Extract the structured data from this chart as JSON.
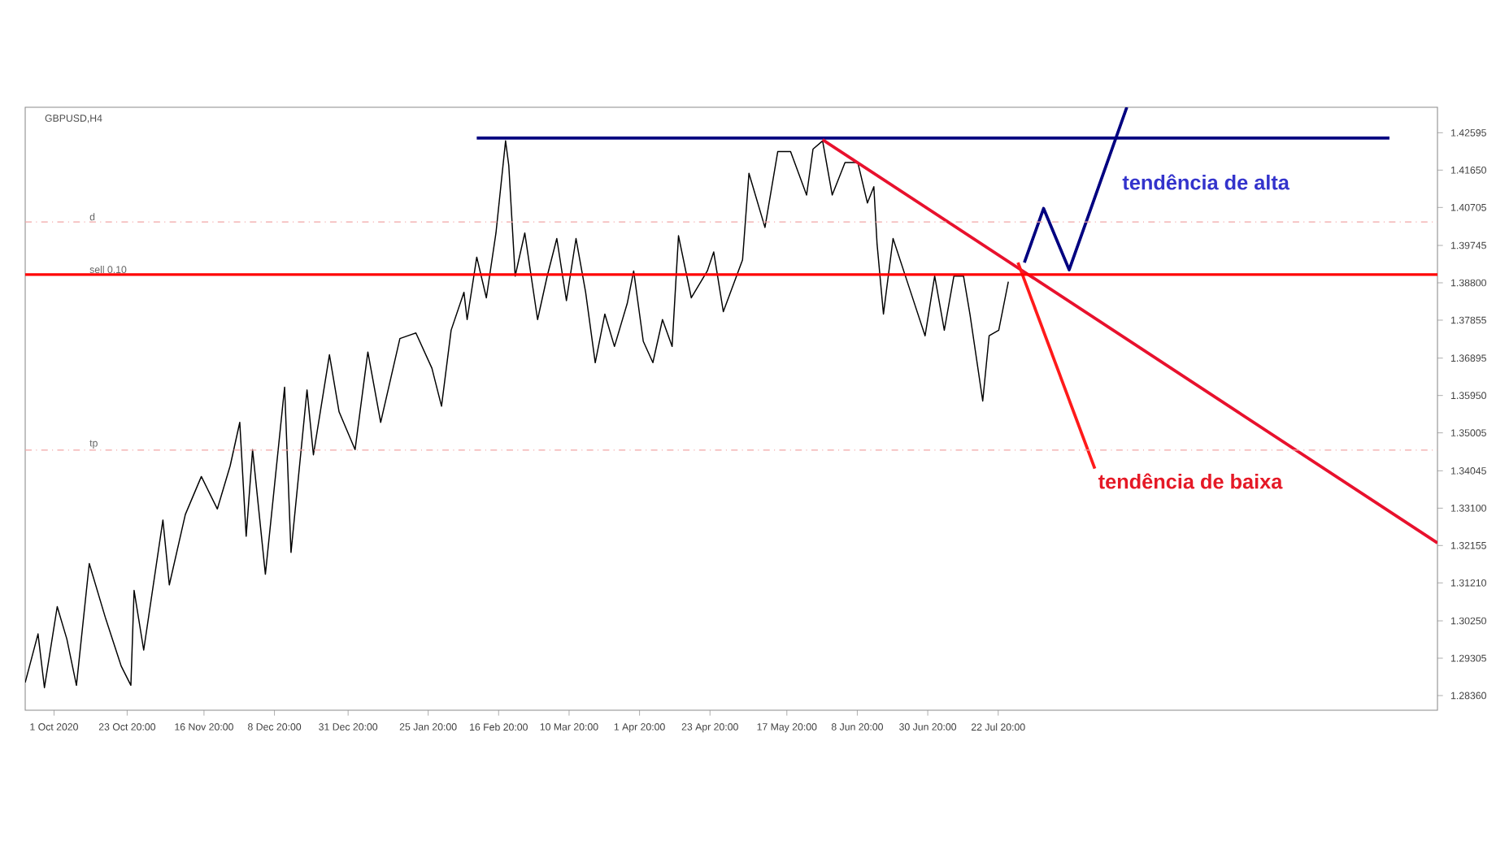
{
  "chart_data": {
    "type": "line",
    "title": "GBPUSD,H4",
    "grid": false,
    "marker": "none",
    "line_style": "solid",
    "xlim": [
      "2020-09-22",
      "2021-12-07"
    ],
    "ylim": [
      1.2799,
      1.4324
    ],
    "xticks": [
      {
        "value": "2020-10-01",
        "label": "1 Oct 2020"
      },
      {
        "value": "2020-10-23T20:00",
        "label": "23 Oct 20:00"
      },
      {
        "value": "2020-11-16T20:00",
        "label": "16 Nov 20:00"
      },
      {
        "value": "2020-12-08T20:00",
        "label": "8 Dec 20:00"
      },
      {
        "value": "2020-12-31T20:00",
        "label": "31 Dec 20:00"
      },
      {
        "value": "2021-01-25T20:00",
        "label": "25 Jan 20:00"
      },
      {
        "value": "2021-02-16T20:00",
        "label": "16 Feb 20:00"
      },
      {
        "value": "2021-03-10T20:00",
        "label": "10 Mar 20:00"
      },
      {
        "value": "2021-04-01T20:00",
        "label": "1 Apr 20:00"
      },
      {
        "value": "2021-04-23T20:00",
        "label": "23 Apr 20:00"
      },
      {
        "value": "2021-05-17T20:00",
        "label": "17 May 20:00"
      },
      {
        "value": "2021-06-08T20:00",
        "label": "8 Jun 20:00"
      },
      {
        "value": "2021-06-30T20:00",
        "label": "30 Jun 20:00"
      },
      {
        "value": "2021-07-22T20:00",
        "label": "22 Jul 20:00"
      }
    ],
    "yticks": [
      1.42595,
      {
        "value": 1.4165,
        "label": "1.41650"
      },
      1.40705,
      1.39745,
      {
        "value": 1.388,
        "label": "1.38800"
      },
      1.37855,
      1.36895,
      {
        "value": 1.3595,
        "label": "1.35950"
      },
      1.35005,
      1.34045,
      {
        "value": 1.331,
        "label": "1.33100"
      },
      1.32155,
      {
        "value": 1.3121,
        "label": "1.31210"
      },
      {
        "value": 1.3025,
        "label": "1.30250"
      },
      1.29305,
      {
        "value": 1.2836,
        "label": "1.28360"
      }
    ],
    "ref_lines": [
      {
        "axis": "y",
        "value": 1.39008,
        "label": "sell 0.10",
        "color": "#ff0000",
        "line_style": "solid"
      },
      {
        "axis": "y",
        "value": 1.4034,
        "label": "d",
        "color": "#f2a6a6",
        "line_style": "dashed"
      },
      {
        "axis": "y",
        "value": 1.3457,
        "label": "tp",
        "color": "#f2a6a6",
        "line_style": "dashed"
      }
    ],
    "annotations": [
      "tendência de alta",
      "tendência de baixa"
    ],
    "series": [
      {
        "color": "#000000",
        "x": [
          "2020-09-22",
          "2020-09-26",
          "2020-09-28",
          "2020-10-02",
          "2020-10-05",
          "2020-10-08",
          "2020-10-12",
          "2020-10-17",
          "2020-10-22",
          "2020-10-25",
          "2020-10-26",
          "2020-10-29",
          "2020-11-04",
          "2020-11-06",
          "2020-11-11",
          "2020-11-16",
          "2020-11-21",
          "2020-11-25",
          "2020-11-28",
          "2020-11-30",
          "2020-12-02",
          "2020-12-06",
          "2020-12-12",
          "2020-12-14",
          "2020-12-19",
          "2020-12-21",
          "2020-12-26",
          "2020-12-29",
          "2021-01-03",
          "2021-01-07",
          "2021-01-11",
          "2021-01-17",
          "2021-01-22",
          "2021-01-27",
          "2021-01-30",
          "2021-02-02",
          "2021-02-06",
          "2021-02-07",
          "2021-02-10",
          "2021-02-13",
          "2021-02-16",
          "2021-02-19",
          "2021-02-20",
          "2021-02-22",
          "2021-02-25",
          "2021-03-01",
          "2021-03-04",
          "2021-03-07",
          "2021-03-10",
          "2021-03-13",
          "2021-03-16",
          "2021-03-19",
          "2021-03-22",
          "2021-03-25",
          "2021-03-29",
          "2021-03-31",
          "2021-04-03",
          "2021-04-06",
          "2021-04-09",
          "2021-04-12",
          "2021-04-14",
          "2021-04-18",
          "2021-04-23",
          "2021-04-25",
          "2021-04-28",
          "2021-05-04",
          "2021-05-06",
          "2021-05-11",
          "2021-05-15",
          "2021-05-19",
          "2021-05-24",
          "2021-05-26",
          "2021-05-29",
          "2021-06-01",
          "2021-06-05",
          "2021-06-09",
          "2021-06-12",
          "2021-06-14",
          "2021-06-15",
          "2021-06-17",
          "2021-06-20",
          "2021-06-25",
          "2021-06-30",
          "2021-07-03",
          "2021-07-06",
          "2021-07-09",
          "2021-07-12",
          "2021-07-14",
          "2021-07-18",
          "2021-07-20",
          "2021-07-23",
          "2021-07-26"
        ],
        "values": [
          1.2869,
          1.2992,
          1.2856,
          1.3061,
          1.2979,
          1.2862,
          1.317,
          1.3034,
          1.291,
          1.2862,
          1.3102,
          1.2951,
          1.328,
          1.3116,
          1.3294,
          1.339,
          1.3308,
          1.3417,
          1.3527,
          1.3239,
          1.3458,
          1.3143,
          1.3616,
          1.3198,
          1.3609,
          1.3445,
          1.3698,
          1.3554,
          1.3458,
          1.3705,
          1.3527,
          1.3739,
          1.3753,
          1.3664,
          1.3568,
          1.376,
          1.3856,
          1.3787,
          1.3945,
          1.3842,
          1.4006,
          1.4239,
          1.4177,
          1.3897,
          1.4006,
          1.3787,
          1.3897,
          1.3992,
          1.3835,
          1.3992,
          1.3856,
          1.3678,
          1.3801,
          1.3719,
          1.3828,
          1.391,
          1.3732,
          1.3678,
          1.3787,
          1.3719,
          1.3999,
          1.3842,
          1.391,
          1.3958,
          1.3807,
          1.3938,
          1.4157,
          1.402,
          1.4212,
          1.4212,
          1.4102,
          1.4218,
          1.4239,
          1.4102,
          1.4184,
          1.4184,
          1.4082,
          1.4123,
          1.3979,
          1.3801,
          1.3992,
          1.3869,
          1.3746,
          1.3897,
          1.376,
          1.3897,
          1.3897,
          1.3801,
          1.3581,
          1.3746,
          1.376,
          1.3883
        ]
      },
      {
        "color": "#000080",
        "x": [
          "2021-02-10",
          "2021-11-22"
        ],
        "values": [
          1.4246,
          1.4246
        ]
      },
      {
        "color": "#e8112d",
        "x": [
          "2021-05-29",
          "2021-12-07"
        ],
        "values": [
          1.4242,
          1.3222
        ]
      },
      {
        "color": "#ff1a1a",
        "x": [
          "2021-07-29",
          "2021-08-22"
        ],
        "values": [
          1.3931,
          1.341
        ]
      },
      {
        "color": "#000080",
        "x": [
          "2021-07-31",
          "2021-08-06",
          "2021-08-14",
          "2021-09-01"
        ],
        "values": [
          1.3931,
          1.4068,
          1.3913,
          1.4324
        ]
      }
    ]
  }
}
